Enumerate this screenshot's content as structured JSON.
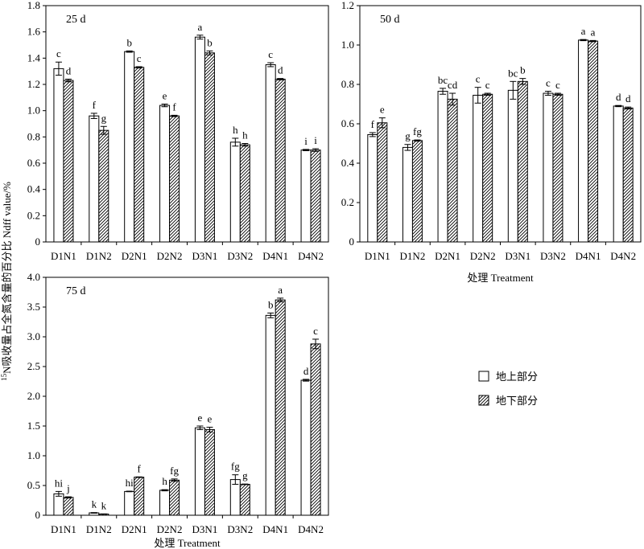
{
  "chart_data": [
    {
      "type": "bar",
      "title": "25 d",
      "categories": [
        "D1N1",
        "D1N2",
        "D2N1",
        "D2N2",
        "D3N1",
        "D3N2",
        "D4N1",
        "D4N2"
      ],
      "ylim": [
        0,
        1.8
      ],
      "yticks": [
        "0",
        "0.2",
        "0.4",
        "0.6",
        "0.8",
        "1.0",
        "1.2",
        "1.4",
        "1.6",
        "1.8"
      ],
      "series": [
        {
          "name": "地上部分",
          "values": [
            1.32,
            0.96,
            1.45,
            1.04,
            1.56,
            0.76,
            1.35,
            0.7
          ],
          "errors": [
            0.05,
            0.02,
            0.005,
            0.01,
            0.015,
            0.03,
            0.015,
            0.005
          ],
          "letters": [
            "c",
            "f",
            "b",
            "e",
            "a",
            "h",
            "c",
            "i"
          ]
        },
        {
          "name": "地下部分",
          "values": [
            1.23,
            0.85,
            1.33,
            0.96,
            1.44,
            0.74,
            1.24,
            0.7
          ],
          "errors": [
            0.01,
            0.03,
            0.005,
            0.005,
            0.015,
            0.01,
            0.005,
            0.01
          ],
          "letters": [
            "d",
            "g",
            "c",
            "f",
            "b",
            "h",
            "d",
            "i"
          ]
        }
      ],
      "xlabel": "",
      "ylabel": ""
    },
    {
      "type": "bar",
      "title": "50 d",
      "categories": [
        "D1N1",
        "D1N2",
        "D2N1",
        "D2N2",
        "D3N1",
        "D3N2",
        "D4N1",
        "D4N2"
      ],
      "ylim": [
        0,
        1.2
      ],
      "yticks": [
        "0",
        "0.2",
        "0.4",
        "0.6",
        "0.8",
        "1.0",
        "1.2"
      ],
      "series": [
        {
          "name": "地上部分",
          "values": [
            0.545,
            0.48,
            0.765,
            0.745,
            0.77,
            0.755,
            1.025,
            0.69
          ],
          "errors": [
            0.01,
            0.015,
            0.015,
            0.04,
            0.045,
            0.01,
            0.003,
            0.003
          ],
          "letters": [
            "f",
            "g",
            "bc",
            "c",
            "bc",
            "c",
            "a",
            "d"
          ]
        },
        {
          "name": "地下部分",
          "values": [
            0.605,
            0.515,
            0.725,
            0.75,
            0.815,
            0.75,
            1.02,
            0.68
          ],
          "errors": [
            0.025,
            0.003,
            0.03,
            0.005,
            0.015,
            0.005,
            0.003,
            0.005
          ],
          "letters": [
            "e",
            "fg",
            "cd",
            "c",
            "b",
            "c",
            "a",
            "d"
          ]
        }
      ],
      "xlabel": "处理 Treatment",
      "ylabel": ""
    },
    {
      "type": "bar",
      "title": "75 d",
      "categories": [
        "D1N1",
        "D1N2",
        "D2N1",
        "D2N2",
        "D3N1",
        "D3N2",
        "D4N1",
        "D4N2"
      ],
      "ylim": [
        0,
        4.0
      ],
      "yticks": [
        "0",
        "0.5",
        "1.0",
        "1.5",
        "2.0",
        "2.5",
        "3.0",
        "3.5",
        "4.0"
      ],
      "series": [
        {
          "name": "地上部分",
          "values": [
            0.36,
            0.04,
            0.4,
            0.42,
            1.47,
            0.6,
            3.36,
            2.27
          ],
          "errors": [
            0.04,
            0.005,
            0.005,
            0.01,
            0.03,
            0.08,
            0.04,
            0.015
          ],
          "letters": [
            "hi",
            "k",
            "hi",
            "h",
            "e",
            "fg",
            "b",
            "d"
          ]
        },
        {
          "name": "地下部分",
          "values": [
            0.3,
            0.02,
            0.64,
            0.59,
            1.44,
            0.52,
            3.62,
            2.88
          ],
          "errors": [
            0.01,
            0.003,
            0.005,
            0.02,
            0.04,
            0.005,
            0.03,
            0.08
          ],
          "letters": [
            "j",
            "k",
            "f",
            "fg",
            "e",
            "g",
            "a",
            "c"
          ]
        }
      ],
      "xlabel": "处理 Treatment",
      "ylabel": ""
    }
  ],
  "shared_ylabel_sup": "15",
  "shared_ylabel_rest": "N吸收量占全氮含量的百分比 Ndff value/%",
  "legend": [
    {
      "name": "地上部分",
      "pattern": "open"
    },
    {
      "name": "地下部分",
      "pattern": "hatched"
    }
  ]
}
